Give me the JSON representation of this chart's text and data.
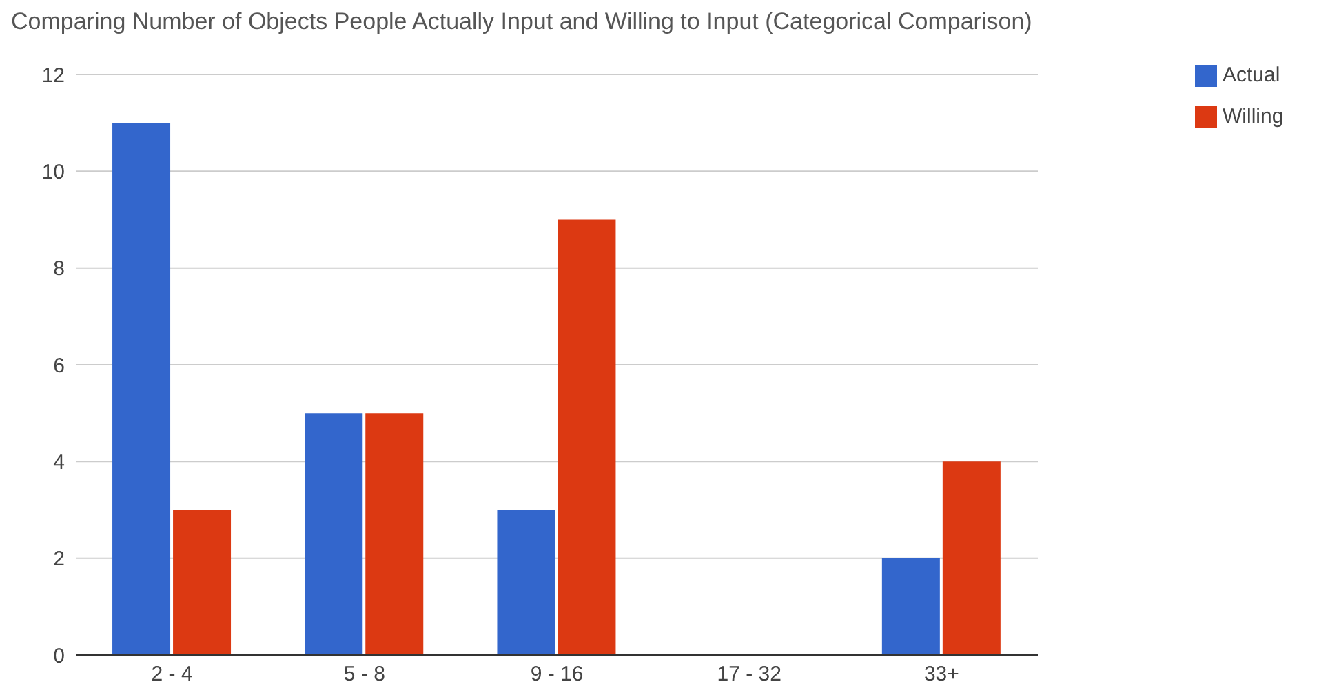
{
  "chart_data": {
    "type": "bar",
    "title": "Comparing Number of Objects People Actually Input and Willing to Input (Categorical Comparison)",
    "categories": [
      "2 - 4",
      "5 - 8",
      "9 - 16",
      "17 - 32",
      "33+"
    ],
    "series": [
      {
        "name": "Actual",
        "color": "#3366cc",
        "values": [
          11,
          5,
          3,
          0,
          2
        ]
      },
      {
        "name": "Willing",
        "color": "#dc3912",
        "values": [
          3,
          5,
          9,
          0,
          4
        ]
      }
    ],
    "ylim": [
      0,
      12
    ],
    "yticks": [
      0,
      2,
      4,
      6,
      8,
      10,
      12
    ],
    "grid": "y",
    "legend": "top right"
  }
}
